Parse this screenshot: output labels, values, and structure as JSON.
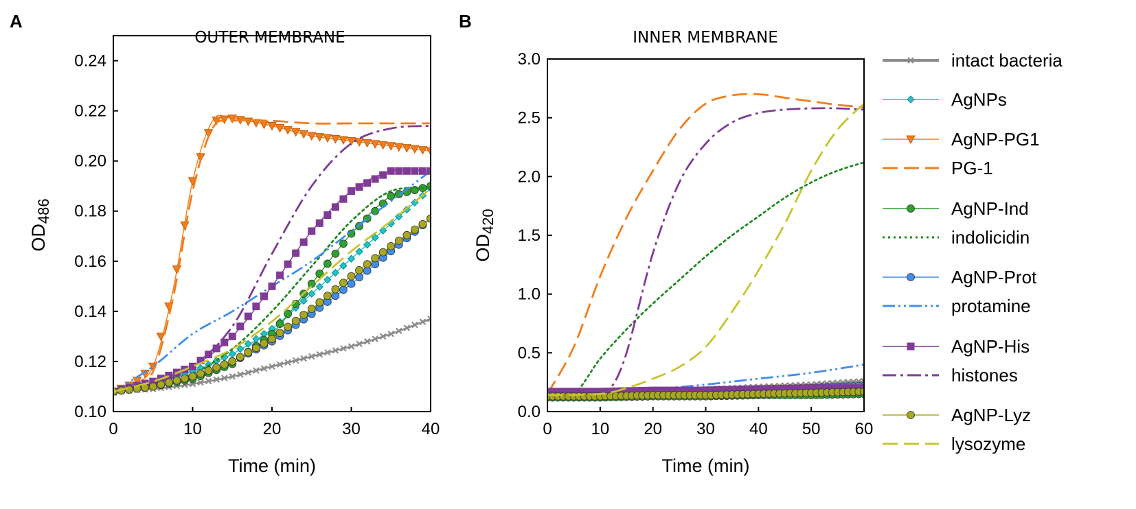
{
  "figure": {
    "panels": [
      {
        "letter": "A",
        "title": "OUTER MEMBRANE",
        "xlabel": "Time (min)",
        "ylabel_main": "OD",
        "ylabel_sub": "486",
        "xlim": [
          0,
          40
        ],
        "ylim": [
          0.1,
          0.25
        ],
        "xticks": [
          "0",
          "10",
          "20",
          "30",
          "40"
        ],
        "yticks": [
          "0.10",
          "0.12",
          "0.14",
          "0.16",
          "0.18",
          "0.20",
          "0.22",
          "0.24"
        ]
      },
      {
        "letter": "B",
        "title": "INNER MEMBRANE",
        "xlabel": "Time (min)",
        "ylabel_main": "OD",
        "ylabel_sub": "420",
        "xlim": [
          0,
          60
        ],
        "ylim": [
          0.0,
          3.0
        ],
        "xticks": [
          "0",
          "10",
          "20",
          "30",
          "40",
          "50",
          "60"
        ],
        "yticks": [
          "0.0",
          "0.5",
          "1.0",
          "1.5",
          "2.0",
          "2.5",
          "3.0"
        ]
      }
    ]
  },
  "legend": [
    {
      "label": "intact bacteria",
      "color": "#8c8c8c",
      "style": "solid-thick",
      "marker": "x"
    },
    {
      "label": "AgNPs",
      "color": "#1fc4c9",
      "style": "solid",
      "marker": "diamond"
    },
    {
      "label": "AgNP-PG1",
      "color": "#f07d1c",
      "style": "solid",
      "marker": "triangle-down"
    },
    {
      "label": "PG-1",
      "color": "#f07d1c",
      "style": "dashed",
      "marker": "none"
    },
    {
      "label": "AgNP-Ind",
      "color": "#2ea12e",
      "style": "solid",
      "marker": "circle"
    },
    {
      "label": "indolicidin",
      "color": "#1f8a1f",
      "style": "dotted",
      "marker": "none"
    },
    {
      "label": "AgNP-Prot",
      "color": "#3e8ef0",
      "style": "solid",
      "marker": "circle"
    },
    {
      "label": "protamine",
      "color": "#3e8ef0",
      "style": "dashdotdot",
      "marker": "none"
    },
    {
      "label": "AgNP-His",
      "color": "#7f3b96",
      "style": "solid",
      "marker": "square"
    },
    {
      "label": "histones",
      "color": "#7f3b96",
      "style": "dashdot",
      "marker": "none"
    },
    {
      "label": "AgNP-Lyz",
      "color": "#a8a820",
      "style": "solid",
      "marker": "circle"
    },
    {
      "label": "lysozyme",
      "color": "#c7c430",
      "style": "dashed",
      "marker": "none"
    }
  ],
  "chart_data": [
    {
      "type": "line",
      "title": "OUTER MEMBRANE",
      "xlabel": "Time (min)",
      "ylabel": "OD486",
      "xlim": [
        0,
        40
      ],
      "ylim": [
        0.1,
        0.25
      ],
      "series": [
        {
          "name": "intact bacteria",
          "x": [
            0,
            5,
            10,
            15,
            20,
            25,
            30,
            35,
            40
          ],
          "values": [
            0.108,
            0.109,
            0.111,
            0.114,
            0.118,
            0.122,
            0.126,
            0.131,
            0.137
          ]
        },
        {
          "name": "AgNPs",
          "x": [
            0,
            5,
            10,
            15,
            20,
            25,
            30,
            35,
            40
          ],
          "values": [
            0.108,
            0.111,
            0.116,
            0.123,
            0.133,
            0.147,
            0.161,
            0.175,
            0.189
          ]
        },
        {
          "name": "AgNP-PG1",
          "x": [
            0,
            2.5,
            5,
            7.5,
            10,
            12.5,
            15,
            20,
            25,
            30,
            35,
            40
          ],
          "values": [
            0.108,
            0.111,
            0.118,
            0.148,
            0.192,
            0.216,
            0.217,
            0.214,
            0.21,
            0.208,
            0.206,
            0.204
          ]
        },
        {
          "name": "PG-1",
          "x": [
            0,
            2.5,
            5,
            7.5,
            10,
            12.5,
            15,
            20,
            25,
            30,
            35,
            40
          ],
          "values": [
            0.108,
            0.11,
            0.116,
            0.145,
            0.188,
            0.213,
            0.216,
            0.216,
            0.215,
            0.215,
            0.215,
            0.215
          ]
        },
        {
          "name": "AgNP-Ind",
          "x": [
            0,
            5,
            10,
            15,
            20,
            25,
            30,
            35,
            40
          ],
          "values": [
            0.108,
            0.11,
            0.113,
            0.119,
            0.131,
            0.151,
            0.171,
            0.186,
            0.19
          ]
        },
        {
          "name": "indolicidin",
          "x": [
            0,
            5,
            10,
            15,
            20,
            25,
            30,
            35,
            40
          ],
          "values": [
            0.108,
            0.11,
            0.115,
            0.125,
            0.14,
            0.158,
            0.176,
            0.188,
            0.189
          ]
        },
        {
          "name": "AgNP-Prot",
          "x": [
            0,
            5,
            10,
            15,
            20,
            25,
            30,
            35,
            40
          ],
          "values": [
            0.108,
            0.11,
            0.114,
            0.12,
            0.128,
            0.139,
            0.151,
            0.164,
            0.177
          ]
        },
        {
          "name": "protamine",
          "x": [
            0,
            5,
            10,
            15,
            20,
            25,
            30,
            35,
            40
          ],
          "values": [
            0.108,
            0.118,
            0.131,
            0.14,
            0.15,
            0.16,
            0.172,
            0.184,
            0.196
          ]
        },
        {
          "name": "AgNP-His",
          "x": [
            0,
            5,
            10,
            15,
            20,
            25,
            30,
            35,
            40
          ],
          "values": [
            0.108,
            0.112,
            0.118,
            0.13,
            0.15,
            0.172,
            0.188,
            0.196,
            0.196
          ]
        },
        {
          "name": "histones",
          "x": [
            0,
            5,
            10,
            15,
            20,
            25,
            30,
            35,
            40
          ],
          "values": [
            0.108,
            0.111,
            0.118,
            0.134,
            0.163,
            0.19,
            0.207,
            0.213,
            0.214
          ]
        },
        {
          "name": "AgNP-Lyz",
          "x": [
            0,
            5,
            10,
            15,
            20,
            25,
            30,
            35,
            40
          ],
          "values": [
            0.108,
            0.11,
            0.114,
            0.12,
            0.129,
            0.141,
            0.154,
            0.166,
            0.177
          ]
        },
        {
          "name": "lysozyme",
          "x": [
            0,
            5,
            10,
            15,
            20,
            25,
            30,
            35,
            40
          ],
          "values": [
            0.108,
            0.112,
            0.118,
            0.125,
            0.136,
            0.15,
            0.164,
            0.176,
            0.189
          ]
        }
      ]
    },
    {
      "type": "line",
      "title": "INNER MEMBRANE",
      "xlabel": "Time (min)",
      "ylabel": "OD420",
      "xlim": [
        0,
        60
      ],
      "ylim": [
        0.0,
        3.0
      ],
      "series": [
        {
          "name": "intact bacteria",
          "x": [
            0,
            10,
            20,
            30,
            40,
            50,
            60
          ],
          "values": [
            0.14,
            0.15,
            0.17,
            0.19,
            0.21,
            0.23,
            0.26
          ]
        },
        {
          "name": "AgNPs",
          "x": [
            0,
            10,
            20,
            30,
            40,
            50,
            60
          ],
          "values": [
            0.13,
            0.13,
            0.14,
            0.15,
            0.16,
            0.17,
            0.18
          ]
        },
        {
          "name": "AgNP-PG1",
          "x": [
            0,
            10,
            20,
            30,
            40,
            50,
            60
          ],
          "values": [
            0.14,
            0.15,
            0.16,
            0.17,
            0.18,
            0.19,
            0.21
          ]
        },
        {
          "name": "PG-1",
          "x": [
            0,
            5,
            10,
            15,
            20,
            25,
            30,
            35,
            40,
            45,
            50,
            55,
            60
          ],
          "values": [
            0.15,
            0.55,
            1.15,
            1.65,
            2.05,
            2.4,
            2.62,
            2.69,
            2.7,
            2.67,
            2.64,
            2.61,
            2.59
          ]
        },
        {
          "name": "AgNP-Ind",
          "x": [
            0,
            10,
            20,
            30,
            40,
            50,
            60
          ],
          "values": [
            0.12,
            0.12,
            0.13,
            0.13,
            0.14,
            0.14,
            0.15
          ]
        },
        {
          "name": "indolicidin",
          "x": [
            0,
            5,
            10,
            15,
            20,
            25,
            30,
            35,
            40,
            45,
            50,
            55,
            60
          ],
          "values": [
            0.14,
            0.15,
            0.45,
            0.7,
            0.92,
            1.12,
            1.32,
            1.5,
            1.66,
            1.82,
            1.95,
            2.05,
            2.12
          ]
        },
        {
          "name": "AgNP-Prot",
          "x": [
            0,
            10,
            20,
            30,
            40,
            50,
            60
          ],
          "values": [
            0.14,
            0.15,
            0.16,
            0.18,
            0.19,
            0.2,
            0.22
          ]
        },
        {
          "name": "protamine",
          "x": [
            0,
            10,
            20,
            30,
            40,
            50,
            60
          ],
          "values": [
            0.14,
            0.16,
            0.19,
            0.23,
            0.28,
            0.33,
            0.4
          ]
        },
        {
          "name": "AgNP-His",
          "x": [
            0,
            10,
            20,
            30,
            40,
            50,
            60
          ],
          "values": [
            0.17,
            0.17,
            0.18,
            0.18,
            0.19,
            0.2,
            0.2
          ]
        },
        {
          "name": "histones",
          "x": [
            0,
            5,
            10,
            12,
            15,
            20,
            25,
            30,
            35,
            40,
            45,
            50,
            55,
            60
          ],
          "values": [
            0.17,
            0.17,
            0.18,
            0.2,
            0.5,
            1.35,
            1.95,
            2.28,
            2.46,
            2.54,
            2.57,
            2.58,
            2.58,
            2.57
          ]
        },
        {
          "name": "AgNP-Lyz",
          "x": [
            0,
            10,
            20,
            30,
            40,
            50,
            60
          ],
          "values": [
            0.13,
            0.13,
            0.14,
            0.14,
            0.15,
            0.16,
            0.17
          ]
        },
        {
          "name": "lysozyme",
          "x": [
            0,
            10,
            15,
            20,
            25,
            30,
            35,
            40,
            45,
            50,
            55,
            60
          ],
          "values": [
            0.14,
            0.15,
            0.2,
            0.28,
            0.38,
            0.55,
            0.85,
            1.2,
            1.6,
            2.05,
            2.4,
            2.62
          ]
        }
      ]
    }
  ]
}
